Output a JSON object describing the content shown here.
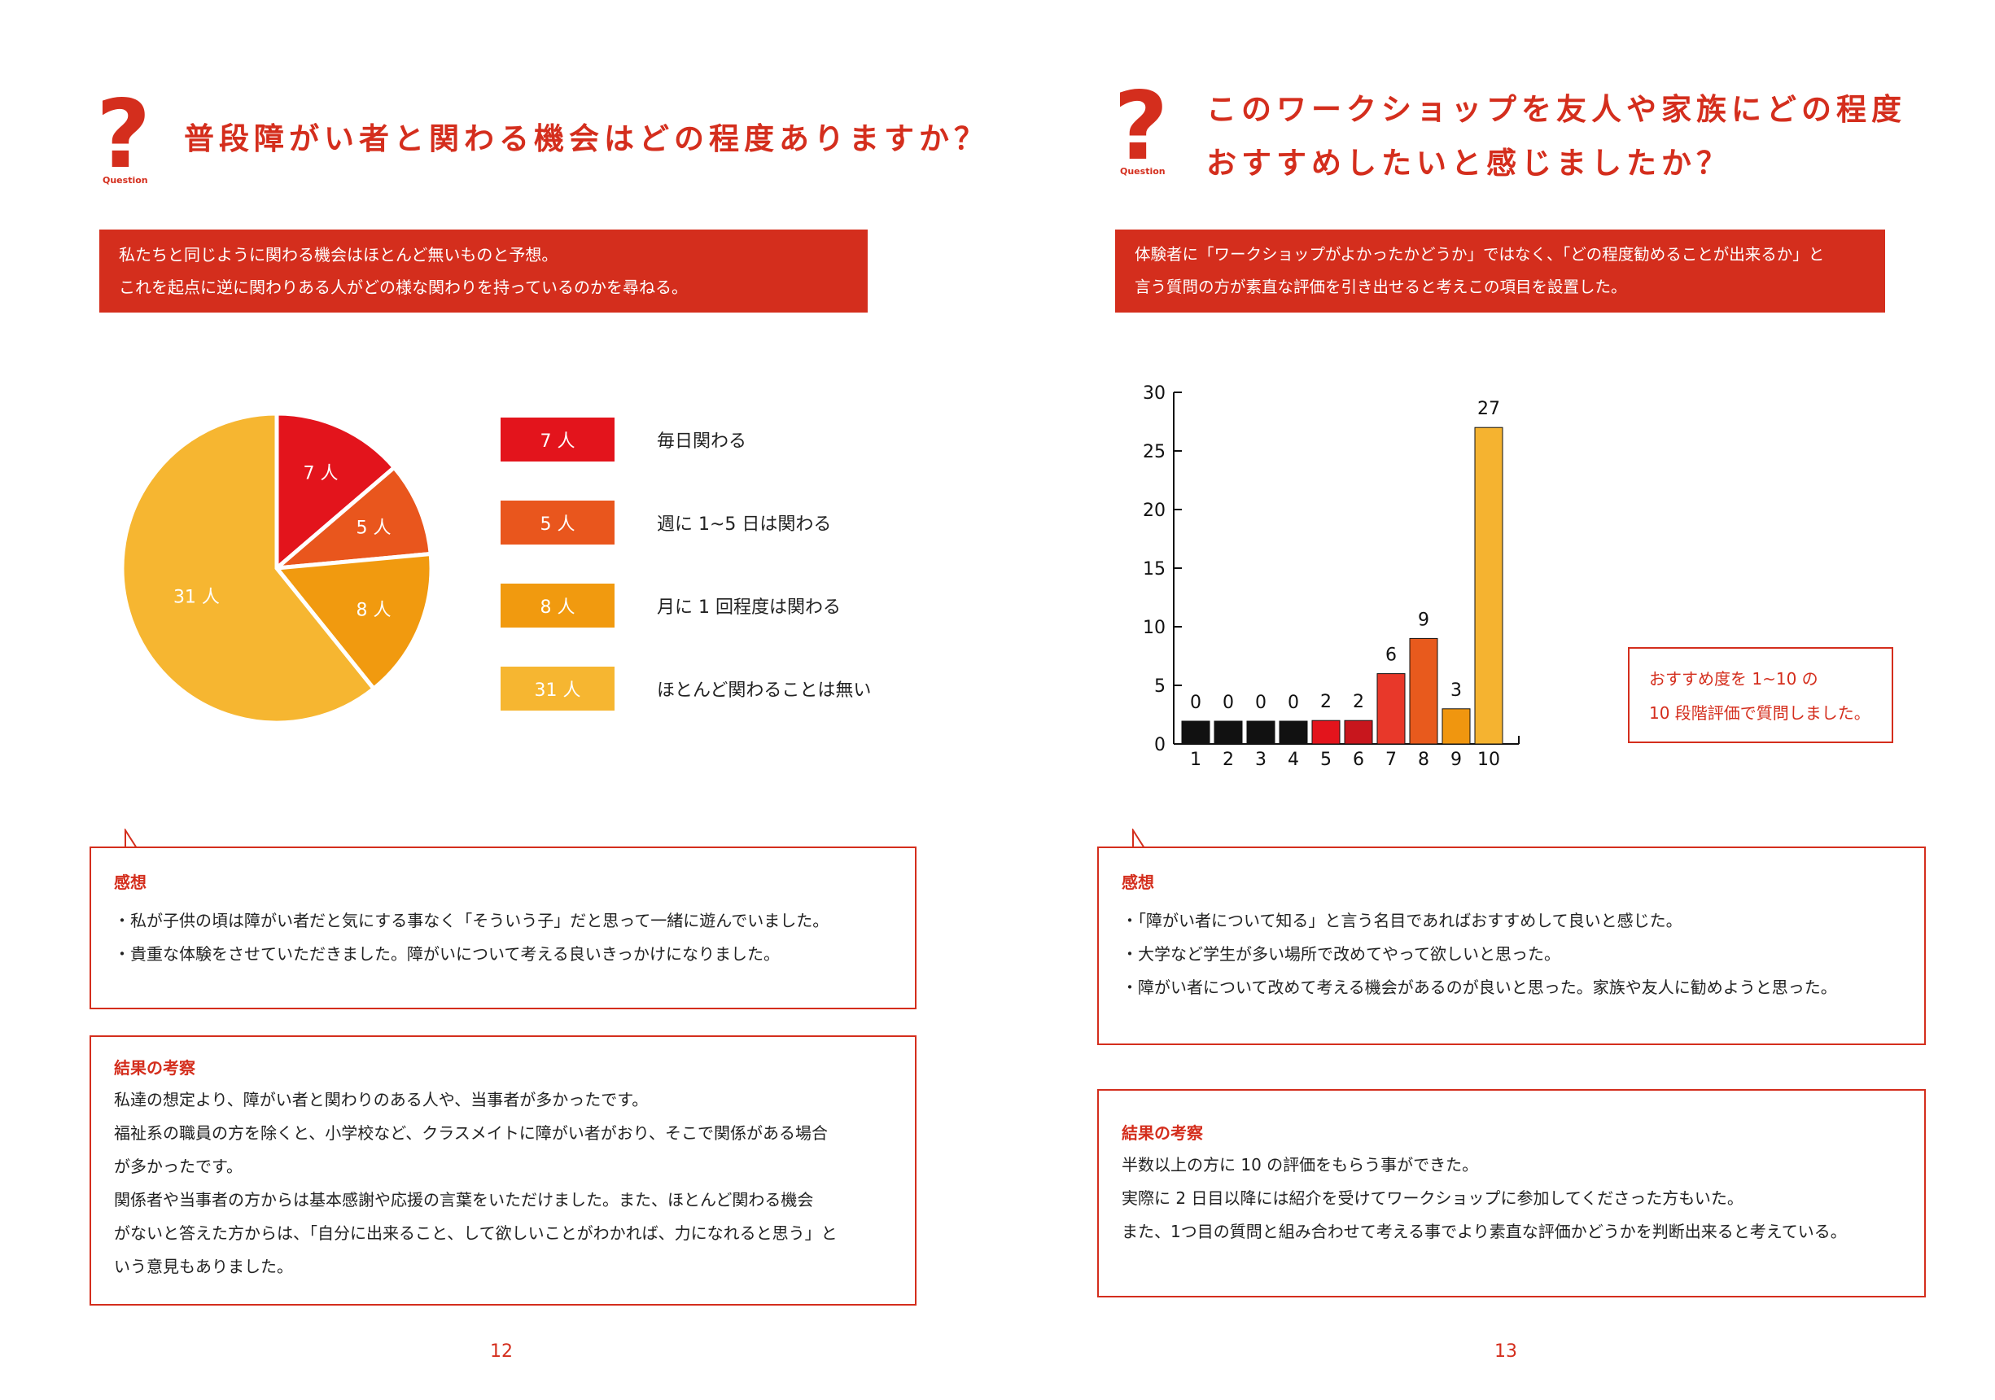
{
  "left": {
    "question_label": "Question",
    "heading": "普段障がい者と関わる機会はどの程度ありますか？",
    "intro_lines": [
      "私たちと同じように関わる機会はほとんど無いものと予想。",
      "これを起点に逆に関わりある人がどの様な関わりを持っているのかを尋ねる。"
    ],
    "legend": [
      {
        "count": "7 人",
        "label": "毎日関わる"
      },
      {
        "count": "5 人",
        "label": "週に 1~5 日は関わる"
      },
      {
        "count": "8 人",
        "label": "月に 1 回程度は関わる"
      },
      {
        "count": "31 人",
        "label": "ほとんど関わることは無い"
      }
    ],
    "impressions": {
      "title": "感想",
      "lines": [
        "・私が子供の頃は障がい者だと気にする事なく「そういう子」だと思って一緒に遊んでいました。",
        "・貴重な体験をさせていただきました。障がいについて考える良いきっかけになりました。"
      ]
    },
    "results": {
      "title": "結果の考察",
      "lines": [
        "私達の想定より、障がい者と関わりのある人や、当事者が多かったです。",
        "福祉系の職員の方を除くと、小学校など、クラスメイトに障がい者がおり、そこで関係がある場合",
        "が多かったです。",
        "関係者や当事者の方からは基本感謝や応援の言葉をいただけました。また、ほとんど関わる機会",
        "がないと答えた方からは、「自分に出来ること、して欲しいことがわかれば、力になれると思う」と",
        "いう意見もありました。"
      ]
    },
    "page_number": "12"
  },
  "right": {
    "question_label": "Question",
    "heading_lines": [
      "このワークショップを友人や家族にどの程度",
      "おすすめしたいと感じましたか？"
    ],
    "intro_lines": [
      "体験者に「ワークショップがよかったかどうか」ではなく、「どの程度勧めることが出来るか」と",
      "言う質問の方が素直な評価を引き出せると考えこの項目を設置した。"
    ],
    "note_lines": [
      "おすすめ度を 1~10 の",
      "10 段階評価で質問しました。"
    ],
    "impressions": {
      "title": "感想",
      "lines": [
        "・「障がい者について知る」と言う名目であればおすすめして良いと感じた。",
        "・大学など学生が多い場所で改めてやって欲しいと思った。",
        "・障がい者について改めて考える機会があるのが良いと思った。家族や友人に勧めようと思った。"
      ]
    },
    "results": {
      "title": "結果の考察",
      "lines": [
        "半数以上の方に 10 の評価をもらう事ができた。",
        "実際に 2 日目以降には紹介を受けてワークショップに参加してくださった方もいた。",
        "また、1つ目の質問と組み合わせて考える事でより素直な評価かどうかを判断出来ると考えている。"
      ]
    },
    "page_number": "13"
  },
  "chart_data": [
    {
      "type": "pie",
      "labels": [
        "毎日関わる",
        "週に 1~5 日は関わる",
        "月に 1 回程度は関わる",
        "ほとんど関わることは無い"
      ],
      "values": [
        7,
        5,
        8,
        31
      ],
      "slice_labels": [
        "7 人",
        "5 人",
        "8 人",
        "31 人"
      ],
      "colors": [
        "#e3141c",
        "#e9561d",
        "#f19a0f",
        "#f6b631"
      ]
    },
    {
      "type": "bar",
      "categories": [
        "1",
        "2",
        "3",
        "4",
        "5",
        "6",
        "7",
        "8",
        "9",
        "10"
      ],
      "values": [
        0,
        0,
        0,
        0,
        2,
        2,
        6,
        9,
        3,
        27
      ],
      "value_labels": [
        "0",
        "0",
        "0",
        "0",
        "2",
        "2",
        "6",
        "9",
        "3",
        "27"
      ],
      "colors": [
        "#111111",
        "#111111",
        "#111111",
        "#111111",
        "#e3141c",
        "#c8161d",
        "#e8382a",
        "#e85a1d",
        "#f0960f",
        "#f5b330"
      ],
      "ylim": [
        0,
        30
      ],
      "yticks": [
        0,
        5,
        10,
        15,
        20,
        25,
        30
      ]
    }
  ]
}
